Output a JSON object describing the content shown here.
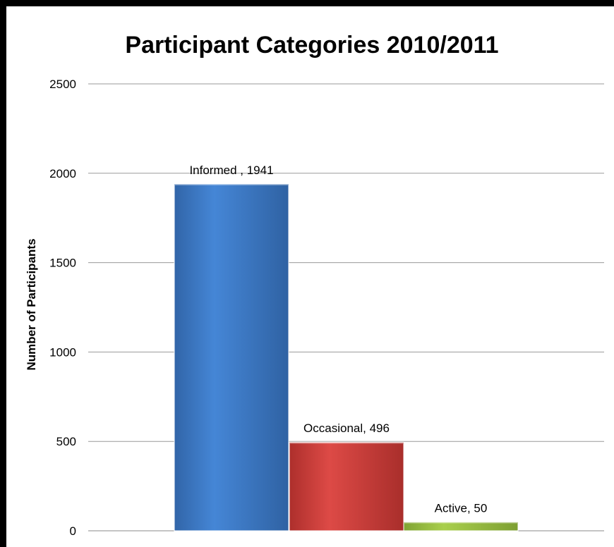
{
  "chart_data": {
    "type": "bar",
    "title": "Participant Categories 2010/2011",
    "xlabel": "",
    "ylabel": "Number of Participants",
    "ylim": [
      0,
      2500
    ],
    "yticks": [
      0,
      500,
      1000,
      1500,
      2000,
      2500
    ],
    "grid": true,
    "categories": [
      "Informed",
      "Occasional",
      "Active"
    ],
    "values": [
      1941,
      496,
      50
    ],
    "data_labels": [
      "Informed , 1941",
      "Occasional, 496",
      "Active, 50"
    ],
    "colors": [
      "#3a78c6",
      "#c9403d",
      "#98c140"
    ]
  }
}
